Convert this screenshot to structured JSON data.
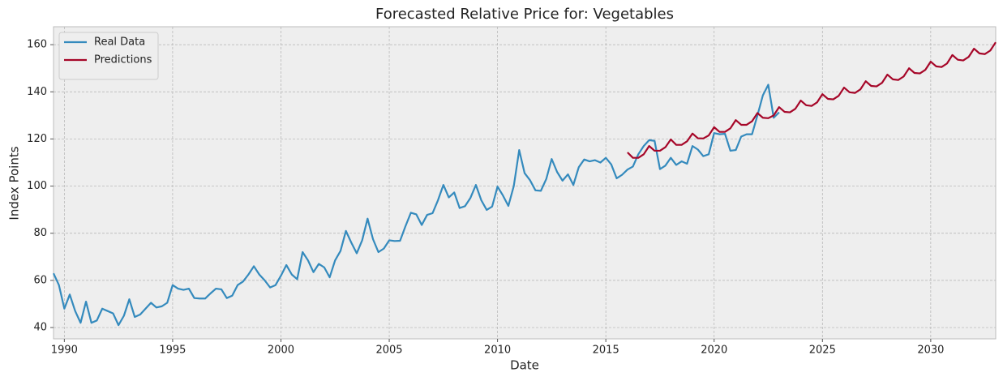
{
  "chart_data": {
    "type": "line",
    "title": "Forecasted Relative Price for: Vegetables",
    "x_label": "Date",
    "y_label": "Index Points",
    "xlim": [
      1989.5,
      2033
    ],
    "ylim": [
      35.2,
      167.6
    ],
    "xticks": [
      1990,
      1995,
      2000,
      2005,
      2010,
      2015,
      2020,
      2025,
      2030
    ],
    "yticks": [
      40,
      60,
      80,
      100,
      120,
      140,
      160
    ],
    "grid": true,
    "legend": "upper-left",
    "series": [
      {
        "name": "Real Data",
        "color": "#348abd",
        "x": [
          1989.5,
          1989.75,
          1990,
          1990.25,
          1990.5,
          1990.75,
          1991,
          1991.25,
          1991.5,
          1991.75,
          1992,
          1992.25,
          1992.5,
          1992.75,
          1993,
          1993.25,
          1993.5,
          1993.75,
          1994,
          1994.25,
          1994.5,
          1994.75,
          1995,
          1995.25,
          1995.5,
          1995.75,
          1996,
          1996.25,
          1996.5,
          1996.75,
          1997,
          1997.25,
          1997.5,
          1997.75,
          1998,
          1998.25,
          1998.5,
          1998.75,
          1999,
          1999.25,
          1999.5,
          1999.75,
          2000,
          2000.25,
          2000.5,
          2000.75,
          2001,
          2001.25,
          2001.5,
          2001.75,
          2002,
          2002.25,
          2002.5,
          2002.75,
          2003,
          2003.25,
          2003.5,
          2003.75,
          2004,
          2004.25,
          2004.5,
          2004.75,
          2005,
          2005.25,
          2005.5,
          2005.75,
          2006,
          2006.25,
          2006.5,
          2006.75,
          2007,
          2007.25,
          2007.5,
          2007.75,
          2008,
          2008.25,
          2008.5,
          2008.75,
          2009,
          2009.25,
          2009.5,
          2009.75,
          2010,
          2010.25,
          2010.5,
          2010.75,
          2011,
          2011.25,
          2011.5,
          2011.75,
          2012,
          2012.25,
          2012.5,
          2012.75,
          2013,
          2013.25,
          2013.5,
          2013.75,
          2014,
          2014.25,
          2014.5,
          2014.75,
          2015,
          2015.25,
          2015.5,
          2015.75,
          2016,
          2016.25,
          2016.5,
          2016.75,
          2017,
          2017.25,
          2017.5,
          2017.75,
          2018,
          2018.25,
          2018.5,
          2018.75,
          2019,
          2019.25,
          2019.5,
          2019.75,
          2020,
          2020.25,
          2020.5,
          2020.75,
          2021,
          2021.25,
          2021.5,
          2021.75,
          2022,
          2022.25,
          2022.5,
          2022.75,
          2023
        ],
        "values": [
          63,
          58,
          48,
          54,
          47,
          42,
          51,
          42,
          43,
          48,
          47,
          46,
          41,
          45,
          52,
          44.5,
          45.5,
          48,
          50.5,
          48.5,
          49,
          50.5,
          58,
          56.5,
          56,
          56.5,
          52.5,
          52.3,
          52.3,
          54.5,
          56.5,
          56.2,
          52.5,
          53.5,
          58,
          59.5,
          62.5,
          66,
          62.5,
          60,
          57,
          58,
          62,
          66.5,
          62.5,
          60.5,
          72,
          68.5,
          63.5,
          67,
          65.5,
          61.3,
          68.5,
          72.5,
          81,
          76,
          71.5,
          77,
          86.2,
          77.5,
          72,
          73.5,
          77,
          76.7,
          76.8,
          83,
          88.7,
          88,
          83.5,
          87.8,
          88.5,
          94,
          100.5,
          95.2,
          97.3,
          90.7,
          91.5,
          95,
          100.5,
          94,
          89.9,
          91.3,
          99.8,
          96,
          91.6,
          100,
          115.3,
          105.5,
          102.5,
          98.2,
          98,
          103,
          111.5,
          106,
          102.3,
          105,
          100.5,
          108,
          111.3,
          110.5,
          111,
          110,
          112,
          109.2,
          103.3,
          104.8,
          107,
          108.3,
          113.5,
          117,
          119.5,
          119.2,
          107.2,
          108.7,
          112,
          109,
          110.5,
          109.5,
          117,
          115.5,
          112.7,
          113.5,
          122.5,
          122,
          122.2,
          115,
          115.3,
          121,
          122,
          122,
          130,
          138.5,
          143,
          129,
          131.3
        ]
      },
      {
        "name": "Predictions",
        "color": "#a60628",
        "x": [
          2016,
          2016.25,
          2016.5,
          2016.75,
          2017,
          2017.25,
          2017.5,
          2017.75,
          2018,
          2018.25,
          2018.5,
          2018.75,
          2019,
          2019.25,
          2019.5,
          2019.75,
          2020,
          2020.25,
          2020.5,
          2020.75,
          2021,
          2021.25,
          2021.5,
          2021.75,
          2022,
          2022.25,
          2022.5,
          2022.75,
          2023,
          2023.25,
          2023.5,
          2023.75,
          2024,
          2024.25,
          2024.5,
          2024.75,
          2025,
          2025.25,
          2025.5,
          2025.75,
          2026,
          2026.25,
          2026.5,
          2026.75,
          2027,
          2027.25,
          2027.5,
          2027.75,
          2028,
          2028.25,
          2028.5,
          2028.75,
          2029,
          2029.25,
          2029.5,
          2029.75,
          2030,
          2030.25,
          2030.5,
          2030.75,
          2031,
          2031.25,
          2031.5,
          2031.75,
          2032,
          2032.25,
          2032.5,
          2032.75,
          2033
        ],
        "values": [
          114.3,
          112,
          112,
          113.5,
          117,
          115,
          115,
          116.5,
          119.8,
          117.5,
          117.5,
          119,
          122.3,
          120.3,
          120.2,
          121.5,
          125,
          123,
          123,
          124.5,
          128,
          126,
          126,
          127.5,
          131,
          129,
          128.8,
          130,
          133.5,
          131.5,
          131.3,
          132.8,
          136.3,
          134.3,
          134,
          135.5,
          139,
          137,
          136.8,
          138.3,
          141.8,
          139.8,
          139.5,
          141,
          144.5,
          142.5,
          142.3,
          143.8,
          147.3,
          145.3,
          145,
          146.5,
          150,
          148,
          147.8,
          149.3,
          152.8,
          150.8,
          150.5,
          152,
          155.6,
          153.6,
          153.3,
          154.8,
          158.3,
          156.3,
          156,
          157.5,
          161
        ]
      }
    ]
  }
}
